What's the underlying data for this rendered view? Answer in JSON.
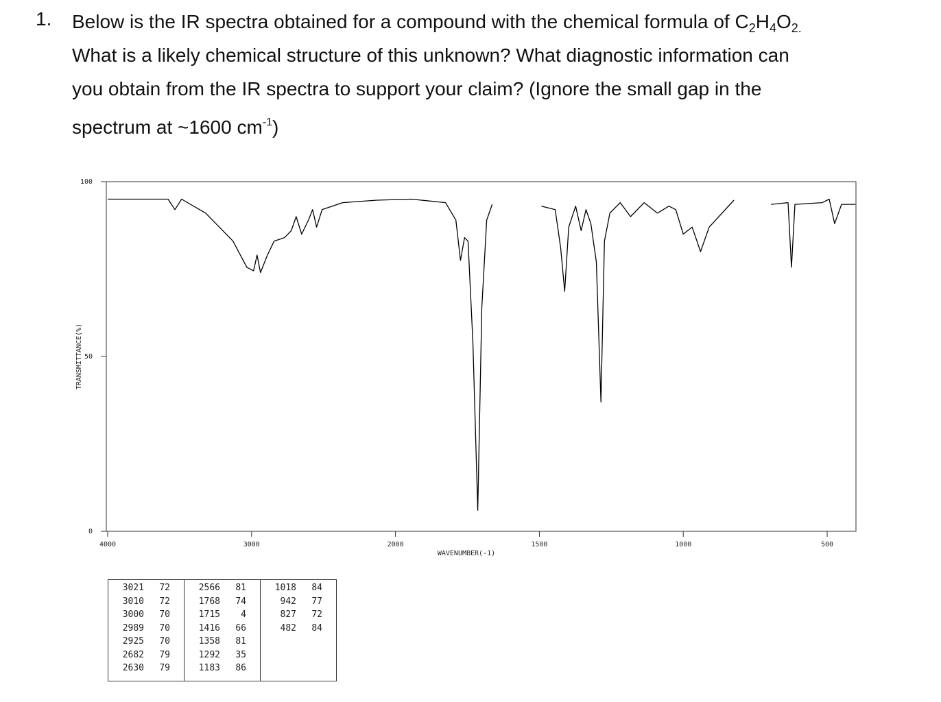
{
  "question": {
    "number": "1.",
    "lines": [
      [
        {
          "text": "Below is the IR spectra obtained for a compound with the chemical formula of C"
        },
        {
          "text": "2",
          "style": "sub"
        },
        {
          "text": "H"
        },
        {
          "text": "4",
          "style": "sub"
        },
        {
          "text": "O"
        },
        {
          "text": "2.",
          "style": "sub"
        }
      ],
      [
        {
          "text": "What is a likely chemical structure of this unknown? What diagnostic information can"
        }
      ],
      [
        {
          "text": "you obtain from the IR spectra to support your claim? (Ignore the small gap in the"
        }
      ],
      [
        {
          "text": "spectrum at ~1600 cm"
        },
        {
          "text": "-1",
          "style": "sup"
        },
        {
          "text": ")"
        }
      ]
    ]
  },
  "chart_data": {
    "type": "line",
    "x_label": "WAVENUMBER(-1)",
    "y_label": "TRANSMITTANCE(%)",
    "color": "#000000",
    "x": [
      4000,
      3580,
      3533,
      3486,
      3319,
      3129,
      3033,
      2986,
      2962,
      2938,
      2890,
      2843,
      2771,
      2724,
      2690,
      2652,
      2605,
      2576,
      2548,
      2510,
      2367,
      2129,
      1945,
      1826,
      1790,
      1774,
      1760,
      1748,
      1731,
      1714,
      1700,
      1683,
      1664,
      1580,
      1493,
      1445,
      1426,
      1412,
      1398,
      1374,
      1355,
      1338,
      1321,
      1302,
      1286,
      1274,
      1255,
      1219,
      1183,
      1136,
      1090,
      1050,
      1026,
      1000,
      969,
      940,
      910,
      824,
      760,
      695,
      636,
      624,
      612,
      517,
      493,
      474,
      450,
      402
    ],
    "values": [
      95,
      95,
      92,
      95,
      91,
      83,
      75.5,
      74.5,
      79,
      74,
      79,
      83,
      84,
      86,
      90,
      85,
      89,
      92,
      87,
      92,
      94,
      94.7,
      95,
      94,
      89,
      77.5,
      84,
      83,
      54,
      6,
      64,
      89,
      93.5,
      null,
      93,
      92,
      81,
      68.6,
      87,
      93,
      86,
      92,
      88,
      77,
      37,
      83,
      91,
      94,
      90,
      94,
      91,
      93,
      92,
      85,
      87,
      80,
      87,
      94.7,
      null,
      93.5,
      94,
      75.5,
      93.5,
      94,
      95,
      88,
      93.5,
      93.5
    ],
    "xlim": [
      4000,
      400
    ],
    "xticks": [
      4000,
      3000,
      2000,
      1500,
      1000,
      500
    ],
    "ylim": [
      0,
      100
    ],
    "yticks": [
      0,
      50,
      100
    ]
  },
  "peak_table": {
    "columns": [
      [
        [
          3021,
          72
        ],
        [
          3010,
          72
        ],
        [
          3000,
          70
        ],
        [
          2989,
          70
        ],
        [
          2925,
          70
        ],
        [
          2682,
          79
        ],
        [
          2630,
          79
        ]
      ],
      [
        [
          2566,
          81
        ],
        [
          1768,
          74
        ],
        [
          1715,
          4
        ],
        [
          1416,
          66
        ],
        [
          1358,
          81
        ],
        [
          1292,
          35
        ],
        [
          1183,
          86
        ]
      ],
      [
        [
          1018,
          84
        ],
        [
          942,
          77
        ],
        [
          827,
          72
        ],
        [
          482,
          84
        ]
      ]
    ]
  }
}
